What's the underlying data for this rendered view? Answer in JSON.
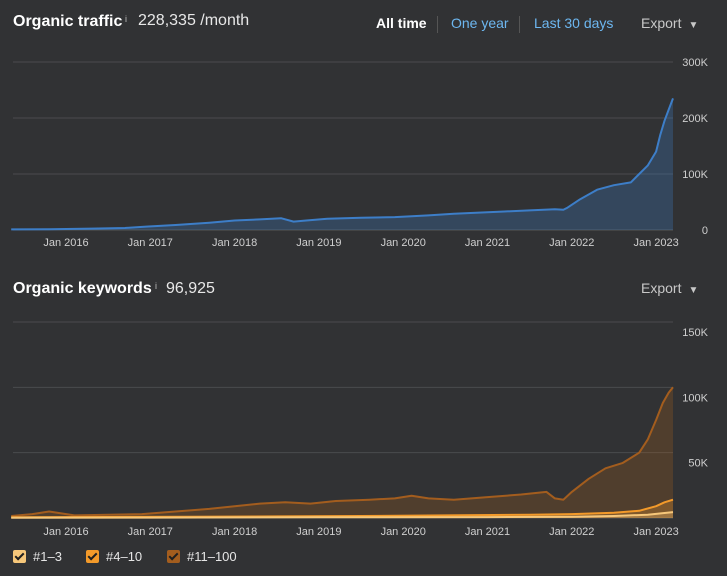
{
  "traffic": {
    "title": "Organic traffic",
    "info": "i",
    "value": "228,335 /month",
    "tabs": [
      {
        "label": "All time",
        "active": true
      },
      {
        "label": "One year",
        "active": false
      },
      {
        "label": "Last 30 days",
        "active": false
      }
    ],
    "export_label": "Export",
    "caret": "▼"
  },
  "keywords": {
    "title": "Organic keywords",
    "info": "i",
    "value": "96,925",
    "export_label": "Export",
    "caret": "▼",
    "legend": [
      {
        "label": "#1–3",
        "color": "#f6c77a"
      },
      {
        "label": "#4–10",
        "color": "#f39a2a"
      },
      {
        "label": "#11–100",
        "color": "#a35d1e"
      }
    ]
  },
  "chart_data": [
    {
      "type": "area",
      "title": "Organic traffic",
      "x_ticks": [
        "Jan 2016",
        "Jan 2017",
        "Jan 2018",
        "Jan 2019",
        "Jan 2020",
        "Jan 2021",
        "Jan 2022",
        "Jan 2023"
      ],
      "y_ticks": [
        "300K",
        "200K",
        "100K",
        "0"
      ],
      "ylim": [
        0,
        300000
      ],
      "grid": true,
      "color": "#3d7ec8",
      "series": [
        {
          "x": [
            2015.35,
            2015.8,
            2016.3,
            2016.7,
            2016.95,
            2017.3,
            2017.7,
            2018.0,
            2018.3,
            2018.55,
            2018.7,
            2018.85,
            2019.1,
            2019.5,
            2019.9,
            2020.3,
            2020.6,
            2020.9,
            2021.2,
            2021.5,
            2021.8,
            2021.9,
            2021.95,
            2022.1,
            2022.3,
            2022.5,
            2022.7,
            2022.8,
            2022.9,
            2023.0,
            2023.05,
            2023.1,
            2023.15,
            2023.2
          ],
          "values": [
            1000,
            1500,
            2500,
            3500,
            6000,
            9000,
            13000,
            17000,
            19000,
            21000,
            15000,
            17000,
            20000,
            22000,
            23000,
            26000,
            29000,
            31000,
            33000,
            35000,
            37000,
            36000,
            40000,
            55000,
            72000,
            80000,
            85000,
            100000,
            115000,
            140000,
            170000,
            195000,
            215000,
            235000
          ]
        }
      ]
    },
    {
      "type": "area",
      "title": "Organic keywords",
      "x_ticks": [
        "Jan 2016",
        "Jan 2017",
        "Jan 2018",
        "Jan 2019",
        "Jan 2020",
        "Jan 2021",
        "Jan 2022",
        "Jan 2023"
      ],
      "y_ticks": [
        "150K",
        "100K",
        "50K"
      ],
      "ylim": [
        0,
        150000
      ],
      "grid": true,
      "series": [
        {
          "name": "#11–100",
          "color": "#a35d1e",
          "x": [
            2015.35,
            2015.6,
            2015.8,
            2016.1,
            2016.5,
            2016.9,
            2017.3,
            2017.7,
            2018.0,
            2018.3,
            2018.6,
            2018.9,
            2019.2,
            2019.6,
            2019.9,
            2020.1,
            2020.3,
            2020.6,
            2021.0,
            2021.4,
            2021.7,
            2021.8,
            2021.9,
            2022.0,
            2022.2,
            2022.4,
            2022.6,
            2022.8,
            2022.9,
            2023.0,
            2023.08,
            2023.15,
            2023.2
          ],
          "values": [
            1500,
            3000,
            5000,
            2000,
            2500,
            3000,
            5000,
            7000,
            9000,
            11000,
            12000,
            11000,
            13000,
            14000,
            15000,
            17000,
            15000,
            14000,
            16000,
            18000,
            20000,
            15000,
            14000,
            20000,
            30000,
            38000,
            42000,
            50000,
            60000,
            75000,
            88000,
            96000,
            100000
          ]
        },
        {
          "name": "#4–10",
          "color": "#f39a2a",
          "x": [
            2015.35,
            2016.5,
            2017.5,
            2018.5,
            2019.5,
            2020.5,
            2021.5,
            2022.0,
            2022.5,
            2022.8,
            2023.0,
            2023.1,
            2023.2
          ],
          "values": [
            500,
            800,
            1000,
            1200,
            1500,
            2000,
            2500,
            3000,
            4000,
            5500,
            9000,
            12000,
            14000
          ]
        },
        {
          "name": "#1–3",
          "color": "#f6c77a",
          "x": [
            2015.35,
            2017.0,
            2019.0,
            2021.0,
            2022.0,
            2022.5,
            2022.9,
            2023.1,
            2023.2
          ],
          "values": [
            200,
            300,
            500,
            700,
            1000,
            1500,
            2500,
            3800,
            4500
          ]
        }
      ]
    }
  ]
}
